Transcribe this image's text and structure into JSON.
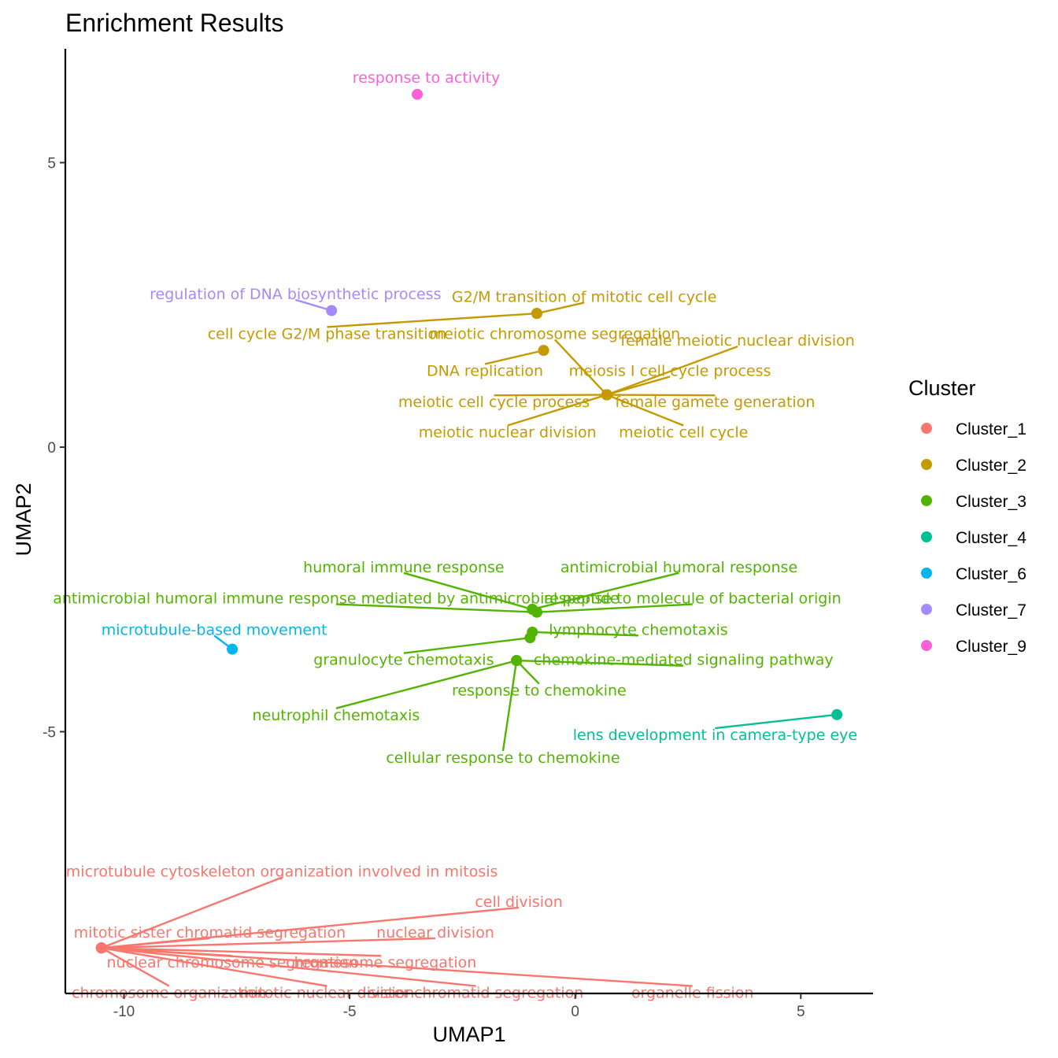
{
  "chart_data": {
    "type": "scatter",
    "title": "Enrichment Results",
    "xlabel": "UMAP1",
    "ylabel": "UMAP2",
    "xlim": [
      -11.3,
      6.6
    ],
    "ylim": [
      -9.6,
      7.0
    ],
    "x_ticks": [
      -10,
      -5,
      0,
      5
    ],
    "y_ticks": [
      -5,
      0,
      5
    ],
    "x_tick_labels": [
      "-10",
      "-5",
      "0",
      "5"
    ],
    "y_tick_labels": [
      "-5",
      "0",
      "5"
    ],
    "grid": false,
    "legend": {
      "title": "Cluster",
      "position": "right"
    },
    "clusters": [
      {
        "name": "Cluster_1",
        "color": "#F8766D"
      },
      {
        "name": "Cluster_2",
        "color": "#C49A00"
      },
      {
        "name": "Cluster_3",
        "color": "#53B400"
      },
      {
        "name": "Cluster_4",
        "color": "#00C094"
      },
      {
        "name": "Cluster_6",
        "color": "#00B6EB"
      },
      {
        "name": "Cluster_7",
        "color": "#A58AFF"
      },
      {
        "name": "Cluster_9",
        "color": "#FB61D7"
      }
    ],
    "points": [
      {
        "cluster": "Cluster_9",
        "x": -3.5,
        "y": 6.2,
        "label": "response to activity",
        "lx": -3.3,
        "ly": 6.5
      },
      {
        "cluster": "Cluster_7",
        "x": -5.4,
        "y": 2.4,
        "label": "regulation of DNA biosynthetic process",
        "lx": -6.2,
        "ly": 2.7
      },
      {
        "cluster": "Cluster_2",
        "x": -0.85,
        "y": 2.35,
        "label": "G2/M transition of mitotic cell cycle",
        "lx": 0.2,
        "ly": 2.65
      },
      {
        "cluster": "Cluster_2",
        "x": -0.85,
        "y": 2.35,
        "label": "cell cycle G2/M phase transition",
        "lx": -5.5,
        "ly": 2.0
      },
      {
        "cluster": "Cluster_2",
        "x": -0.7,
        "y": 1.7,
        "label": "DNA replication",
        "lx": -2.0,
        "ly": 1.35
      },
      {
        "cluster": "Cluster_2",
        "x": 0.7,
        "y": 0.92,
        "label": "meiotic chromosome segregation",
        "lx": -0.45,
        "ly": 2.0
      },
      {
        "cluster": "Cluster_2",
        "x": 0.7,
        "y": 0.92,
        "label": "female meiotic nuclear division",
        "lx": 3.6,
        "ly": 1.88
      },
      {
        "cluster": "Cluster_2",
        "x": 0.7,
        "y": 0.92,
        "label": "meiosis I cell cycle process",
        "lx": 2.1,
        "ly": 1.35
      },
      {
        "cluster": "Cluster_2",
        "x": 0.7,
        "y": 0.92,
        "label": "meiotic cell cycle process",
        "lx": -1.8,
        "ly": 0.8
      },
      {
        "cluster": "Cluster_2",
        "x": 0.7,
        "y": 0.92,
        "label": "female gamete generation",
        "lx": 3.1,
        "ly": 0.8
      },
      {
        "cluster": "Cluster_2",
        "x": 0.7,
        "y": 0.92,
        "label": "meiotic nuclear division",
        "lx": -1.5,
        "ly": 0.27
      },
      {
        "cluster": "Cluster_2",
        "x": 0.7,
        "y": 0.92,
        "label": "meiotic cell cycle",
        "lx": 2.4,
        "ly": 0.27
      },
      {
        "cluster": "Cluster_3",
        "x": -0.95,
        "y": -2.85,
        "label": "humoral immune response",
        "lx": -3.8,
        "ly": -2.1
      },
      {
        "cluster": "Cluster_3",
        "x": -0.95,
        "y": -2.85,
        "label": "antimicrobial humoral response",
        "lx": 2.3,
        "ly": -2.1
      },
      {
        "cluster": "Cluster_3",
        "x": -0.85,
        "y": -2.9,
        "label": "antimicrobial humoral immune response mediated by antimicrobial peptide",
        "lx": -5.3,
        "ly": -2.65
      },
      {
        "cluster": "Cluster_3",
        "x": -0.85,
        "y": -2.9,
        "label": "response to molecule of bacterial origin",
        "lx": 2.6,
        "ly": -2.65
      },
      {
        "cluster": "Cluster_3",
        "x": -0.95,
        "y": -3.25,
        "label": "lymphocyte chemotaxis",
        "lx": 1.4,
        "ly": -3.2
      },
      {
        "cluster": "Cluster_3",
        "x": -1.0,
        "y": -3.35,
        "label": "granulocyte chemotaxis",
        "lx": -3.8,
        "ly": -3.73
      },
      {
        "cluster": "Cluster_3",
        "x": -1.3,
        "y": -3.75,
        "label": "chemokine-mediated signaling pathway",
        "lx": 2.4,
        "ly": -3.73
      },
      {
        "cluster": "Cluster_3",
        "x": -1.3,
        "y": -3.75,
        "label": "response to chemokine",
        "lx": -0.8,
        "ly": -4.27
      },
      {
        "cluster": "Cluster_3",
        "x": -1.3,
        "y": -3.75,
        "label": "neutrophil chemotaxis",
        "lx": -5.3,
        "ly": -4.7
      },
      {
        "cluster": "Cluster_3",
        "x": -1.3,
        "y": -3.75,
        "label": "cellular response to chemokine",
        "lx": -1.6,
        "ly": -5.45
      },
      {
        "cluster": "Cluster_4",
        "x": 5.8,
        "y": -4.7,
        "label": "lens development in camera-type eye",
        "lx": 3.1,
        "ly": -5.05
      },
      {
        "cluster": "Cluster_6",
        "x": -7.6,
        "y": -3.55,
        "label": "microtubule-based movement",
        "lx": -8.0,
        "ly": -3.2
      },
      {
        "cluster": "Cluster_1",
        "x": -10.5,
        "y": -8.8,
        "label": "microtubule cytoskeleton organization involved in mitosis",
        "lx": -6.5,
        "ly": -7.45
      },
      {
        "cluster": "Cluster_1",
        "x": -10.5,
        "y": -8.8,
        "label": "cell division",
        "lx": -1.25,
        "ly": -7.98
      },
      {
        "cluster": "Cluster_1",
        "x": -10.5,
        "y": -8.8,
        "label": "mitotic sister chromatid segregation",
        "lx": -8.1,
        "ly": -8.52
      },
      {
        "cluster": "Cluster_1",
        "x": -10.5,
        "y": -8.8,
        "label": "nuclear division",
        "lx": -3.1,
        "ly": -8.52
      },
      {
        "cluster": "Cluster_1",
        "x": -10.5,
        "y": -8.8,
        "label": "nuclear chromosome segregation",
        "lx": -7.6,
        "ly": -9.05
      },
      {
        "cluster": "Cluster_1",
        "x": -10.5,
        "y": -8.8,
        "label": "chromosome segregation",
        "lx": -4.3,
        "ly": -9.05
      },
      {
        "cluster": "Cluster_1",
        "x": -10.5,
        "y": -8.8,
        "label": "chromosome organization",
        "lx": -9.0,
        "ly": -9.58
      },
      {
        "cluster": "Cluster_1",
        "x": -10.5,
        "y": -8.8,
        "label": "mitotic nuclear division",
        "lx": -5.5,
        "ly": -9.58
      },
      {
        "cluster": "Cluster_1",
        "x": -10.5,
        "y": -8.8,
        "label": "sister chromatid segregation",
        "lx": -2.2,
        "ly": -9.58
      },
      {
        "cluster": "Cluster_1",
        "x": -10.5,
        "y": -8.8,
        "label": "organelle fission",
        "lx": 2.6,
        "ly": -9.58
      }
    ]
  }
}
